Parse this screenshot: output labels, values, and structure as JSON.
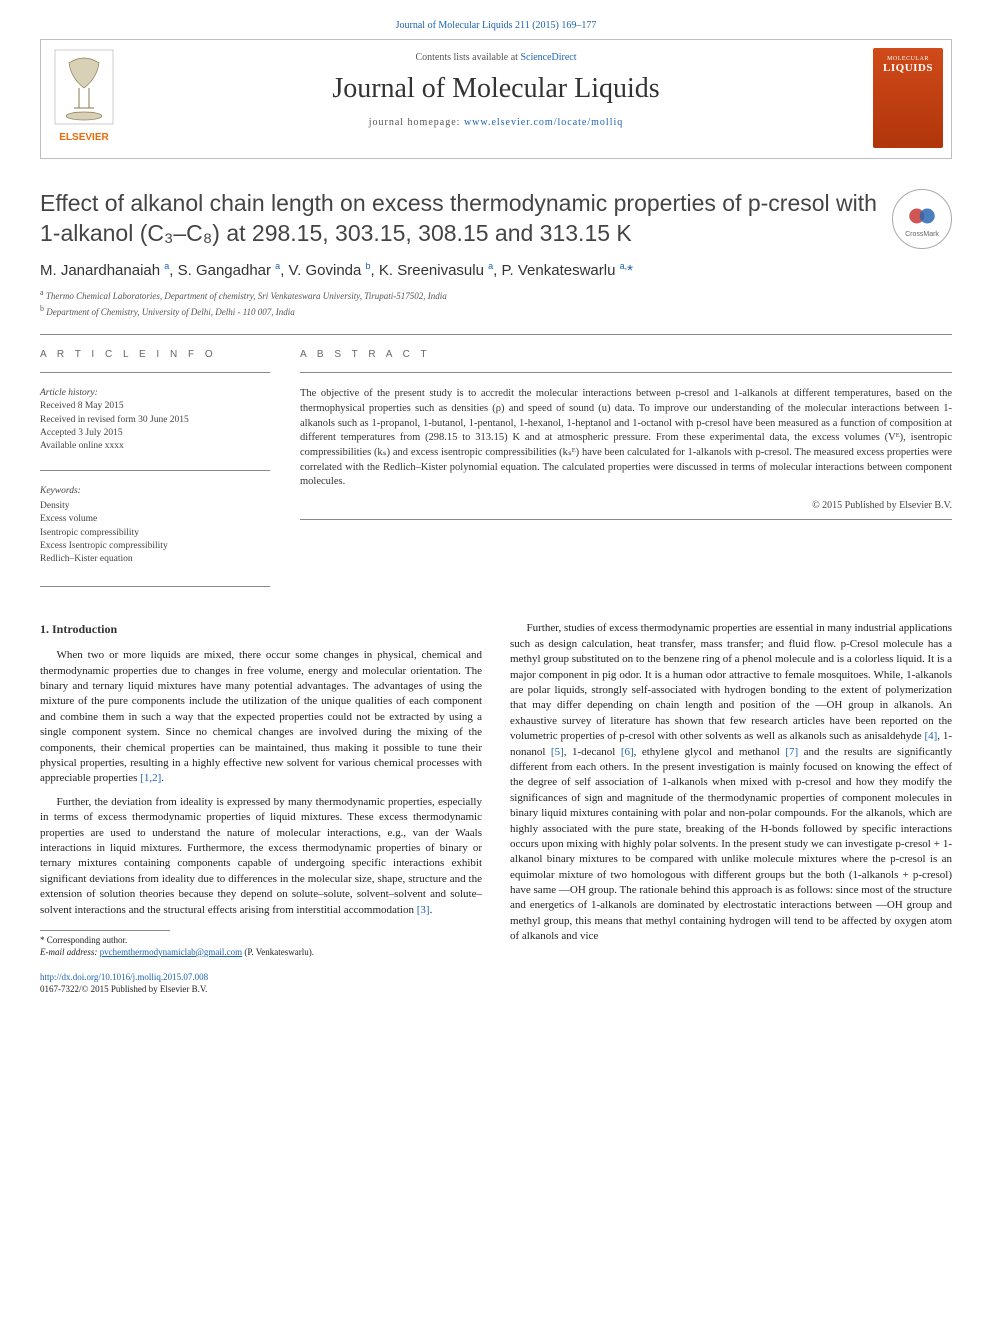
{
  "citation": "Journal of Molecular Liquids 211 (2015) 169–177",
  "header": {
    "contents_prefix": "Contents lists available at ",
    "contents_link": "ScienceDirect",
    "journal_name": "Journal of Molecular Liquids",
    "homepage_prefix": "journal homepage: ",
    "homepage_link": "www.elsevier.com/locate/molliq",
    "publisher": "ELSEVIER",
    "cover_label_top": "MOLECULAR",
    "cover_label_bottom": "LIQUIDS"
  },
  "title": "Effect of alkanol chain length on excess thermodynamic properties of p-cresol with 1-alkanol (C₃–C₈) at 298.15, 303.15, 308.15 and 313.15 K",
  "crossmark_label": "CrossMark",
  "authors_html": "M. Janardhanaiah <sup>a</sup>, S. Gangadhar <sup>a</sup>, V. Govinda <sup>b</sup>, K. Sreenivasulu <sup>a</sup>, P. Venkateswarlu <sup>a,</sup><span class='asterisk'>*</span>",
  "affiliations": {
    "a": "Thermo Chemical Laboratories, Department of chemistry, Sri Venkateswara University, Tirupati-517502, India",
    "b": "Department of Chemistry, University of Delhi, Delhi - 110 007, India"
  },
  "article_info_label": "A R T I C L E   I N F O",
  "abstract_label": "A B S T R A C T",
  "history": {
    "label": "Article history:",
    "received": "Received 8 May 2015",
    "revised": "Received in revised form 30 June 2015",
    "accepted": "Accepted 3 July 2015",
    "online": "Available online xxxx"
  },
  "keywords": {
    "label": "Keywords:",
    "items": [
      "Density",
      "Excess volume",
      "Isentropic compressibility",
      "Excess Isentropic compressibility",
      "Redlich–Kister equation"
    ]
  },
  "abstract": "The objective of the present study is to accredit the molecular interactions between p-cresol and 1-alkanols at different temperatures, based on the thermophysical properties such as densities (ρ) and speed of sound (u) data. To improve our understanding of the molecular interactions between 1-alkanols such as 1-propanol, 1-butanol, 1-pentanol, 1-hexanol, 1-heptanol and 1-octanol with p-cresol have been measured as a function of composition at different temperatures from (298.15 to 313.15) K and at atmospheric pressure. From these experimental data, the excess volumes (Vᴱ), isentropic compressibilities (kₛ) and excess isentropic compressibilities (kₛᴱ) have been calculated for 1-alkanols with p-cresol. The measured excess properties were correlated with the Redlich–Kister polynomial equation. The calculated properties were discussed in terms of molecular interactions between component molecules.",
  "copyright": "© 2015 Published by Elsevier B.V.",
  "intro_heading": "1. Introduction",
  "body": {
    "p1": "When two or more liquids are mixed, there occur some changes in physical, chemical and thermodynamic properties due to changes in free volume, energy and molecular orientation. The binary and ternary liquid mixtures have many potential advantages. The advantages of using the mixture of the pure components include the utilization of the unique qualities of each component and combine them in such a way that the expected properties could not be extracted by using a single component system. Since no chemical changes are involved during the mixing of the components, their chemical properties can be maintained, thus making it possible to tune their physical properties, resulting in a highly effective new solvent for various chemical processes with appreciable properties ",
    "p1_ref": "[1,2]",
    "p1_end": ".",
    "p2": "Further, the deviation from ideality is expressed by many thermodynamic properties, especially in terms of excess thermodynamic properties of liquid mixtures. These excess thermodynamic properties are used to understand the nature of molecular interactions, e.g., van der Waals interactions in liquid mixtures. Furthermore, the excess thermodynamic properties of binary or ternary mixtures containing components capable of undergoing specific interactions exhibit significant deviations from ideality due to differences in the molecular size, shape, structure and the extension of solution theories because they depend on solute–solute, solvent–solvent and solute–solvent interactions and the structural effects arising from interstitial accommodation ",
    "p2_ref": "[3]",
    "p2_end": ".",
    "p3a": "Further, studies of excess thermodynamic properties are essential in many industrial applications such as design calculation, heat transfer, mass transfer; and fluid flow. p-Cresol molecule has a methyl group substituted on to the benzene ring of a phenol molecule and is a colorless liquid. It is a major component in pig odor. It is a human odor attractive to female mosquitoes. While, 1-alkanols are polar liquids, strongly self-associated with hydrogen bonding to the extent of polymerization that may differ depending on chain length and position of the —OH group in alkanols. An exhaustive survey of literature has shown that few research articles have been reported on the volumetric properties of p-cresol with other solvents as well as alkanols such as anisaldehyde ",
    "p3_ref4": "[4]",
    "p3b": ", 1-nonanol ",
    "p3_ref5": "[5]",
    "p3c": ", 1-decanol ",
    "p3_ref6": "[6]",
    "p3d": ", ethylene glycol and methanol ",
    "p3_ref7": "[7]",
    "p3e": " and the results are significantly different from each others. In the present investigation is mainly focused on knowing the effect of the degree of self association of 1-alkanols when mixed with p-cresol and how they modify the significances of sign and magnitude of the thermodynamic properties of component molecules in binary liquid mixtures containing with polar and non-polar compounds. For the alkanols, which are highly associated with the pure state, breaking of the H-bonds followed by specific interactions occurs upon mixing with highly polar solvents. In the present study we can investigate p-cresol + 1-alkanol binary mixtures to be compared with unlike molecule mixtures where the p-cresol is an equimolar mixture of two homologous with different groups but the both (1-alkanols + p-cresol) have same —OH group. The rationale behind this approach is as follows: since most of the structure and energetics of 1-alkanols are dominated by electrostatic interactions between —OH group and methyl group, this means that methyl containing hydrogen will tend to be affected by oxygen atom of alkanols and vice"
  },
  "footnote": {
    "corr": "* Corresponding author.",
    "email_label": "E-mail address: ",
    "email": "pvchemthermodynamiclab@gmail.com",
    "email_suffix": " (P. Venkateswarlu)."
  },
  "bottom": {
    "doi": "http://dx.doi.org/10.1016/j.molliq.2015.07.008",
    "issn_line": "0167-7322/© 2015 Published by Elsevier B.V."
  },
  "colors": {
    "link": "#2064b0",
    "text": "#222222",
    "muted": "#555555",
    "border": "#888888",
    "cover_bg_top": "#d04a1a",
    "cover_bg_bottom": "#b0350a",
    "elsevier_orange": "#ec6a08"
  }
}
